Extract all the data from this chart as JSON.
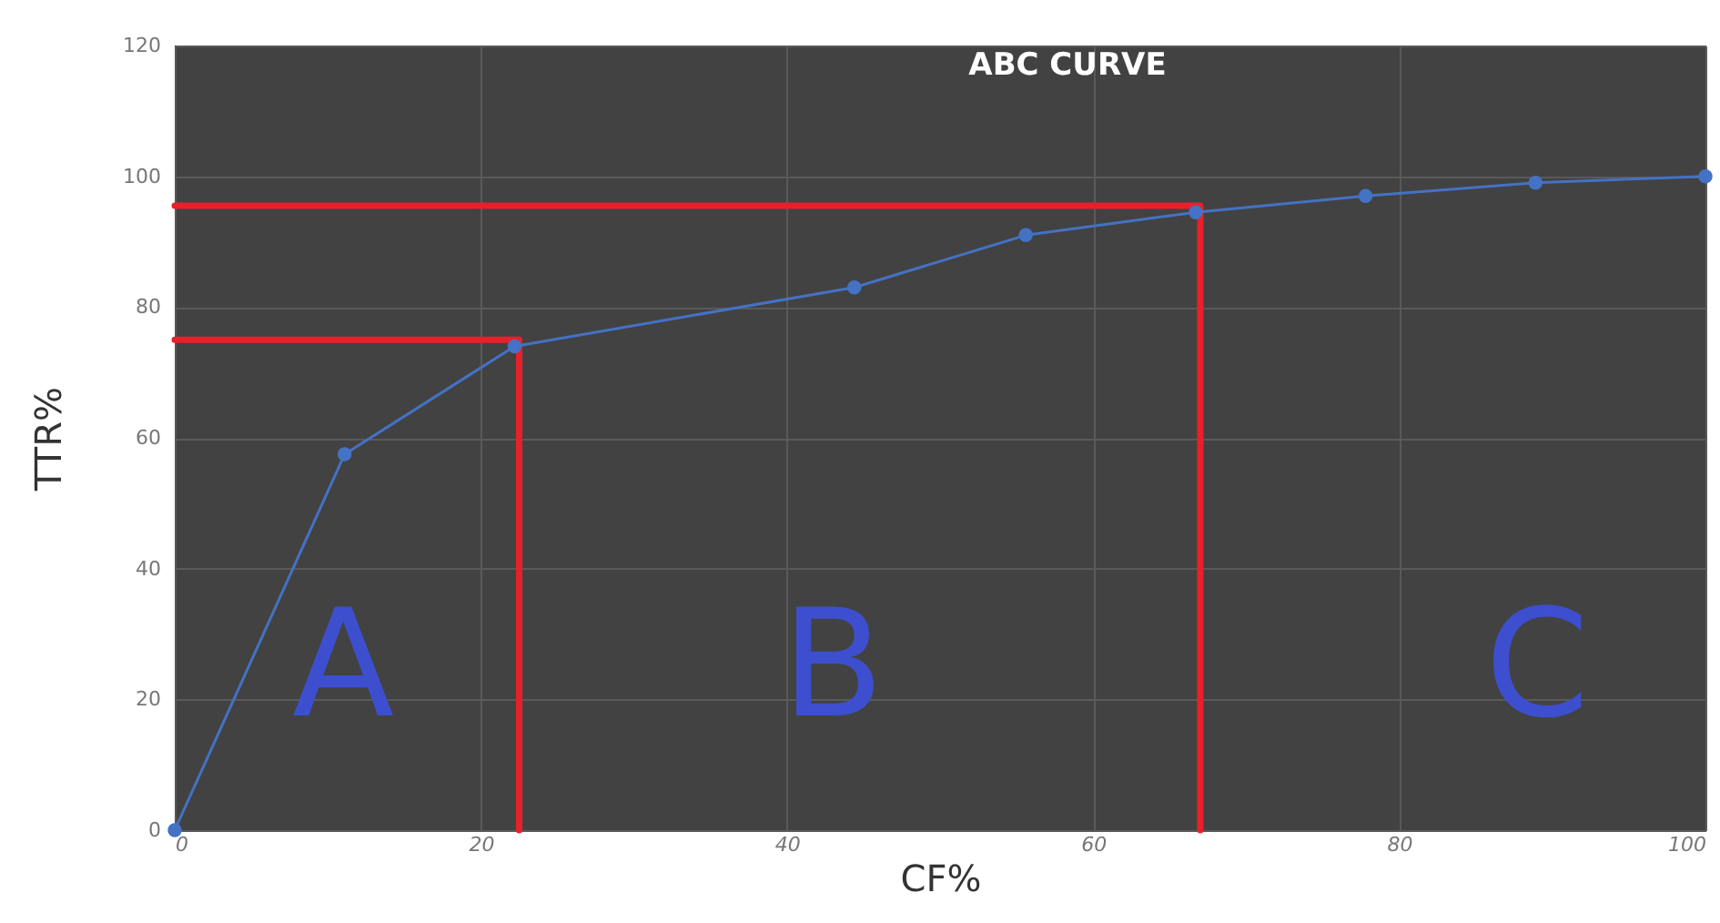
{
  "chart_data": {
    "type": "line",
    "title": "ABC CURVE",
    "xlabel": "CF%",
    "ylabel": "TTR%",
    "xlim": [
      0,
      100
    ],
    "xticks": [
      0,
      20,
      40,
      60,
      80,
      100
    ],
    "ylim": [
      0,
      120
    ],
    "yticks": [
      0,
      20,
      40,
      60,
      80,
      100,
      120
    ],
    "grid": true,
    "series": [
      {
        "color": "#4472c4",
        "marker": "circle",
        "line_style": "solid",
        "x": [
          0,
          11.1,
          22.2,
          44.4,
          55.6,
          66.7,
          77.8,
          88.9,
          100
        ],
        "values": [
          0,
          57.5,
          74,
          83,
          91,
          94.5,
          97,
          99,
          100
        ]
      },
      {
        "color": "#e8202a",
        "marker": "none",
        "line_style": "solid",
        "x": [
          0,
          22.5,
          22.5
        ],
        "values": [
          75,
          75,
          0
        ]
      },
      {
        "color": "#e8202a",
        "marker": "none",
        "line_style": "solid",
        "x": [
          0,
          67,
          67
        ],
        "values": [
          95.5,
          95.5,
          0
        ]
      }
    ],
    "annotations": [
      "A",
      "B",
      "C"
    ]
  }
}
